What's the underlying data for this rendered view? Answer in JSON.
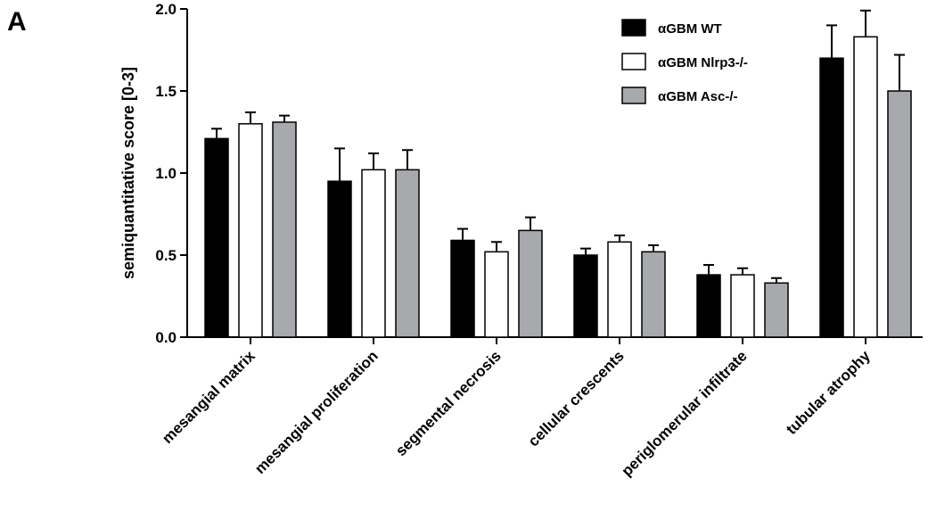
{
  "panel_label": "A",
  "chart_data": {
    "type": "bar",
    "title": "",
    "xlabel": "",
    "ylabel": "semiquantitative score [0-3]",
    "ylim": [
      0,
      2.0
    ],
    "yticks": [
      "0.0",
      "0.5",
      "1.0",
      "1.5",
      "2.0"
    ],
    "ytick_values": [
      0,
      0.5,
      1.0,
      1.5,
      2.0
    ],
    "categories": [
      "mesangial matrix",
      "mesangial proliferation",
      "segmental necrosis",
      "cellular crescents",
      "periglomerular infiltrate",
      "tubular atrophy"
    ],
    "series": [
      {
        "name": "αGBM WT",
        "color": "#000000",
        "values": [
          1.21,
          0.95,
          0.59,
          0.5,
          0.38,
          1.7
        ],
        "errors": [
          0.06,
          0.2,
          0.07,
          0.04,
          0.06,
          0.2
        ]
      },
      {
        "name": "αGBM Nlrp3-/-",
        "color": "#ffffff",
        "values": [
          1.3,
          1.02,
          0.52,
          0.58,
          0.38,
          1.83
        ],
        "errors": [
          0.07,
          0.1,
          0.06,
          0.04,
          0.04,
          0.16
        ]
      },
      {
        "name": "αGBM Asc-/-",
        "color": "#a8a9ac",
        "values": [
          1.31,
          1.02,
          0.65,
          0.52,
          0.33,
          1.5
        ],
        "errors": [
          0.04,
          0.12,
          0.08,
          0.04,
          0.03,
          0.22
        ]
      }
    ],
    "legend_position": "top-right",
    "grid": false
  }
}
